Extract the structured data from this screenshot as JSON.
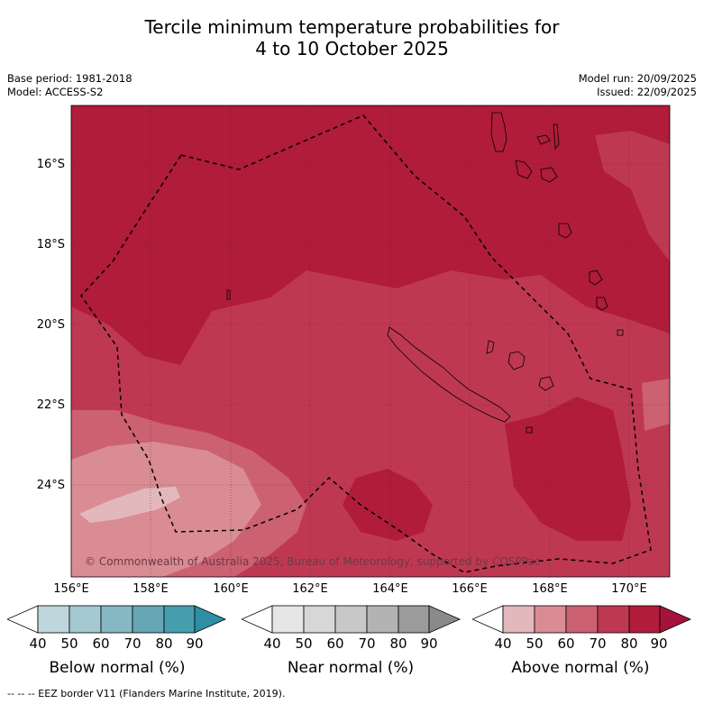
{
  "title": {
    "line1": "Tercile minimum temperature probabilities for",
    "line2": "4 to 10 October 2025"
  },
  "meta": {
    "base_period": "Base period: 1981-2018",
    "model": "Model: ACCESS-S2",
    "model_run": "Model run: 20/09/2025",
    "issued": "Issued: 22/09/2025"
  },
  "map": {
    "lat_labels": [
      "16°S",
      "18°S",
      "20°S",
      "22°S",
      "24°S"
    ],
    "lon_labels": [
      "156°E",
      "158°E",
      "160°E",
      "162°E",
      "164°E",
      "166°E",
      "168°E",
      "170°E"
    ],
    "copyright": "© Commonwealth of Australia 2025, Bureau of Meteorology, supported by COSPPac",
    "dominant_category": "Above normal",
    "regions": [
      {
        "category": "above",
        "probability_range": "80-90",
        "color": "#b01c3a"
      },
      {
        "category": "above",
        "probability_range": "70-80",
        "color": "#bf3852"
      },
      {
        "category": "above",
        "probability_range": "60-70",
        "color": "#cc6171"
      },
      {
        "category": "above",
        "probability_range": "50-60",
        "color": "#d98c94"
      },
      {
        "category": "above",
        "probability_range": "40-50",
        "color": "#e3b8bd"
      }
    ],
    "eez_line_color": "#000000"
  },
  "colorbars": [
    {
      "label": "Below normal (%)",
      "ticks": [
        "40",
        "50",
        "60",
        "70",
        "80",
        "90"
      ],
      "colors": [
        "#ffffff",
        "#bfd6dc",
        "#a4c9d0",
        "#86b8c3",
        "#66a7b5",
        "#449ead",
        "#2e8fa4"
      ]
    },
    {
      "label": "Near normal (%)",
      "ticks": [
        "40",
        "50",
        "60",
        "70",
        "80",
        "90"
      ],
      "colors": [
        "#ffffff",
        "#e6e6e6",
        "#d7d7d7",
        "#c8c8c8",
        "#b3b3b3",
        "#9b9b9b",
        "#8a8a8a"
      ]
    },
    {
      "label": "Above normal (%)",
      "ticks": [
        "40",
        "50",
        "60",
        "70",
        "80",
        "90"
      ],
      "colors": [
        "#ffffff",
        "#e3b8bd",
        "#d98c94",
        "#cc6171",
        "#bf3852",
        "#b01c3a",
        "#a5133a"
      ]
    }
  ],
  "footer": "--  --  -- EEZ border V11 (Flanders Marine Institute, 2019)."
}
